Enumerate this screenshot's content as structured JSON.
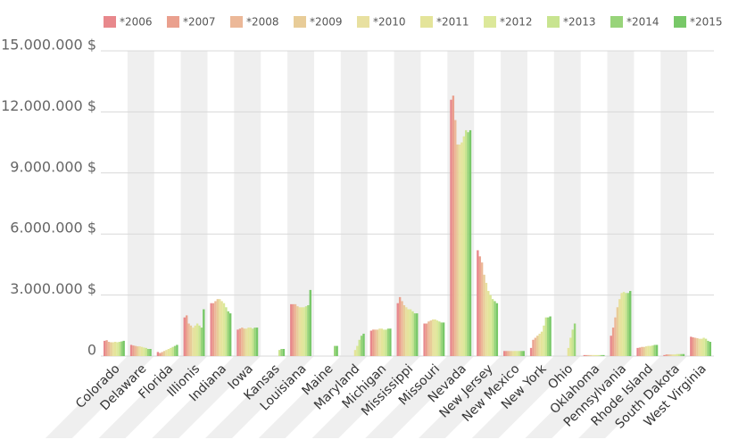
{
  "chart_data": {
    "type": "bar",
    "categories": [
      "Colorado",
      "Delaware",
      "Florida",
      "Illionis",
      "Indiana",
      "Iowa",
      "Kansas",
      "Louisiana",
      "Maine",
      "Maryland",
      "Michigan",
      "Mississippi",
      "Missouri",
      "Nevada",
      "New Jersey",
      "New Mexico",
      "New York",
      "Ohio",
      "Oklahoma",
      "Pennsylvania",
      "Rhode Island",
      "South Dakota",
      "West Virginia"
    ],
    "ylim": [
      0,
      15000000
    ],
    "yticks": [
      0,
      {
        "value": 3000000,
        "label": "3.000.000 $"
      },
      {
        "value": 6000000,
        "label": "6.000.000 $"
      },
      {
        "value": 9000000,
        "label": "9.000.000 $"
      },
      {
        "value": 12000000,
        "label": "12.000.000 $"
      },
      {
        "value": 15000000,
        "label": "15.000.000 $"
      }
    ],
    "grid": true,
    "legend": "top",
    "series": [
      {
        "name": "*2006",
        "color": "#e8888c",
        "values": [
          750000,
          550000,
          200000,
          1900000,
          2600000,
          1300000,
          0,
          2550000,
          0,
          0,
          1250000,
          2600000,
          1600000,
          12600000,
          5200000,
          250000,
          400000,
          0,
          50000,
          1000000,
          400000,
          50000,
          950000
        ]
      },
      {
        "name": "*2007",
        "color": "#eaa08e",
        "values": [
          780000,
          520000,
          150000,
          2000000,
          2600000,
          1350000,
          0,
          2550000,
          0,
          0,
          1300000,
          2900000,
          1600000,
          12800000,
          4900000,
          250000,
          800000,
          0,
          50000,
          1400000,
          420000,
          80000,
          920000
        ]
      },
      {
        "name": "*2008",
        "color": "#ecb898",
        "values": [
          700000,
          500000,
          200000,
          1600000,
          2700000,
          1400000,
          0,
          2550000,
          0,
          0,
          1300000,
          2700000,
          1700000,
          11600000,
          4600000,
          250000,
          900000,
          0,
          50000,
          1900000,
          450000,
          80000,
          900000
        ]
      },
      {
        "name": "*2009",
        "color": "#e8cc98",
        "values": [
          680000,
          480000,
          250000,
          1500000,
          2800000,
          1350000,
          0,
          2450000,
          0,
          0,
          1300000,
          2500000,
          1750000,
          10400000,
          4000000,
          250000,
          1000000,
          0,
          50000,
          2400000,
          450000,
          80000,
          880000
        ]
      },
      {
        "name": "*2010",
        "color": "#e8e0a0",
        "values": [
          680000,
          480000,
          300000,
          1400000,
          2800000,
          1350000,
          0,
          2400000,
          0,
          0,
          1350000,
          2400000,
          1800000,
          10400000,
          3600000,
          250000,
          1100000,
          0,
          50000,
          2800000,
          480000,
          80000,
          850000
        ]
      },
      {
        "name": "*2011",
        "color": "#e4e49a",
        "values": [
          700000,
          450000,
          350000,
          1500000,
          2700000,
          1400000,
          0,
          2400000,
          0,
          300000,
          1350000,
          2300000,
          1800000,
          10500000,
          3200000,
          250000,
          1200000,
          400000,
          50000,
          3100000,
          500000,
          80000,
          850000
        ]
      },
      {
        "name": "*2012",
        "color": "#dce89a",
        "values": [
          680000,
          420000,
          400000,
          1600000,
          2600000,
          1400000,
          0,
          2400000,
          0,
          500000,
          1300000,
          2300000,
          1750000,
          10800000,
          3000000,
          250000,
          1500000,
          900000,
          50000,
          3150000,
          500000,
          100000,
          900000
        ]
      },
      {
        "name": "*2013",
        "color": "#c8e490",
        "values": [
          700000,
          400000,
          450000,
          1500000,
          2400000,
          1350000,
          300000,
          2450000,
          0,
          800000,
          1300000,
          2200000,
          1700000,
          11100000,
          2800000,
          250000,
          1900000,
          1300000,
          50000,
          3100000,
          520000,
          100000,
          850000
        ]
      },
      {
        "name": "*2014",
        "color": "#98d47a",
        "values": [
          720000,
          350000,
          500000,
          1400000,
          2200000,
          1400000,
          350000,
          2500000,
          500000,
          1000000,
          1350000,
          2100000,
          1650000,
          11000000,
          2700000,
          250000,
          1900000,
          1600000,
          50000,
          3100000,
          550000,
          100000,
          750000
        ]
      },
      {
        "name": "*2015",
        "color": "#78c868",
        "values": [
          750000,
          350000,
          550000,
          2300000,
          2100000,
          1400000,
          350000,
          3250000,
          500000,
          1100000,
          1350000,
          2100000,
          1650000,
          11100000,
          2600000,
          250000,
          1950000,
          0,
          50000,
          3200000,
          550000,
          100000,
          700000
        ]
      }
    ]
  }
}
